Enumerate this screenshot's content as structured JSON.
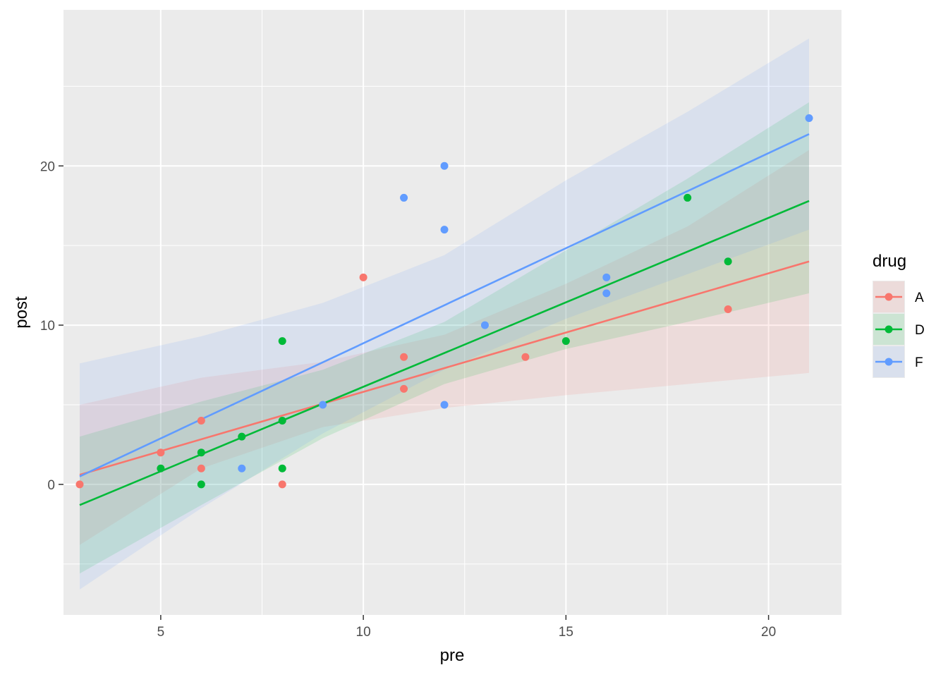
{
  "chart_data": {
    "type": "scatter",
    "title": "",
    "xlabel": "pre",
    "ylabel": "post",
    "xlim": [
      2.6,
      21.8
    ],
    "ylim": [
      -8.2,
      29.8
    ],
    "x_ticks": [
      5,
      10,
      15,
      20
    ],
    "x_tick_labels": [
      "5",
      "10",
      "15",
      "20"
    ],
    "y_ticks": [
      0,
      10,
      20
    ],
    "y_tick_labels": [
      "0",
      "10",
      "20"
    ],
    "grid": true,
    "legend": {
      "title": "drug",
      "position": "right"
    },
    "series": [
      {
        "name": "A",
        "color": "#F8766D",
        "points": [
          [
            11,
            6
          ],
          [
            8,
            0
          ],
          [
            5,
            2
          ],
          [
            14,
            8
          ],
          [
            19,
            11
          ],
          [
            6,
            4
          ],
          [
            10,
            13
          ],
          [
            6,
            1
          ],
          [
            11,
            8
          ],
          [
            3,
            0
          ]
        ],
        "fit": {
          "x": [
            3,
            21
          ],
          "y": [
            0.6,
            14.0
          ]
        },
        "band": {
          "x": [
            3,
            6,
            9,
            12,
            15,
            18,
            21
          ],
          "lower": [
            -3.8,
            1.0,
            3.6,
            4.8,
            5.6,
            6.3,
            7.0
          ],
          "upper": [
            5.0,
            6.7,
            7.7,
            9.4,
            12.6,
            16.2,
            21.0
          ]
        }
      },
      {
        "name": "D",
        "color": "#00BA38",
        "points": [
          [
            6,
            0
          ],
          [
            6,
            2
          ],
          [
            7,
            3
          ],
          [
            8,
            1
          ],
          [
            18,
            18
          ],
          [
            8,
            4
          ],
          [
            19,
            14
          ],
          [
            8,
            9
          ],
          [
            5,
            1
          ],
          [
            15,
            9
          ]
        ],
        "fit": {
          "x": [
            3,
            21
          ],
          "y": [
            -1.3,
            17.8
          ]
        },
        "band": {
          "x": [
            3,
            6,
            9,
            12,
            15,
            18,
            21
          ],
          "lower": [
            -5.6,
            -1.3,
            2.9,
            6.3,
            8.5,
            10.2,
            12.0
          ],
          "upper": [
            3.0,
            5.2,
            7.2,
            10.2,
            14.7,
            19.2,
            24.0
          ]
        }
      },
      {
        "name": "F",
        "color": "#619CFF",
        "points": [
          [
            16,
            13
          ],
          [
            13,
            10
          ],
          [
            11,
            18
          ],
          [
            9,
            5
          ],
          [
            21,
            23
          ],
          [
            16,
            12
          ],
          [
            12,
            5
          ],
          [
            12,
            16
          ],
          [
            7,
            1
          ],
          [
            12,
            20
          ]
        ],
        "fit": {
          "x": [
            3,
            21
          ],
          "y": [
            0.5,
            22.0
          ]
        },
        "band": {
          "x": [
            3,
            6,
            9,
            12,
            15,
            18,
            21
          ],
          "lower": [
            -6.6,
            -1.5,
            3.2,
            7.2,
            10.4,
            13.2,
            16.0
          ],
          "upper": [
            7.6,
            9.3,
            11.4,
            14.4,
            19.1,
            23.4,
            28.0
          ]
        }
      }
    ]
  }
}
